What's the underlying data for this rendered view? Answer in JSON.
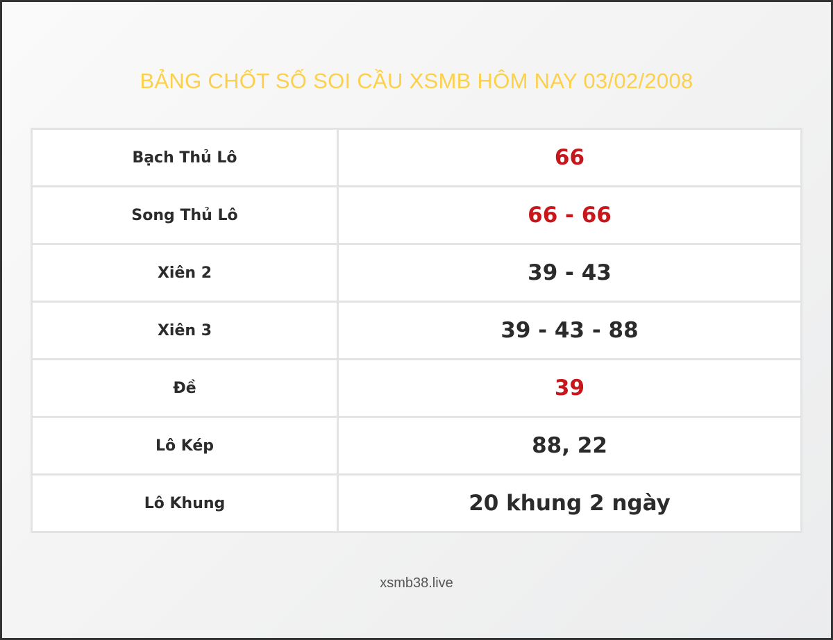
{
  "title": "BẢNG CHỐT SỐ SOI CẦU XSMB HÔM NAY 03/02/2008",
  "colors": {
    "title": "#fdd04a",
    "highlight": "#c8161d",
    "text": "#2b2b2b"
  },
  "rows": [
    {
      "label": "Bạch Thủ Lô",
      "value": "66",
      "highlight": true
    },
    {
      "label": "Song Thủ Lô",
      "value": "66 - 66",
      "highlight": true
    },
    {
      "label": "Xiên 2",
      "value": "39 - 43",
      "highlight": false
    },
    {
      "label": "Xiên 3",
      "value": "39 - 43 - 88",
      "highlight": false
    },
    {
      "label": "Đề",
      "value": "39",
      "highlight": true
    },
    {
      "label": "Lô Kép",
      "value": "88, 22",
      "highlight": false
    },
    {
      "label": "Lô Khung",
      "value": "20 khung 2 ngày",
      "highlight": false
    }
  ],
  "footer": "xsmb38.live"
}
